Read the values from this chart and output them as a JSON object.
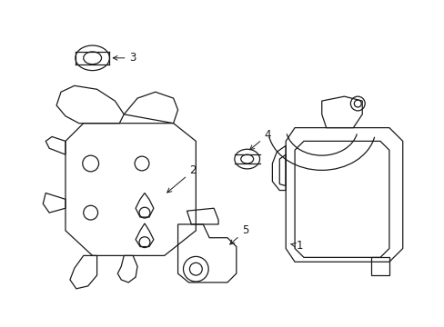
{
  "background_color": "#ffffff",
  "line_color": "#1a1a1a",
  "line_width": 0.9,
  "figsize": [
    4.89,
    3.6
  ],
  "dpi": 100,
  "border_color": "#e0e0e0"
}
